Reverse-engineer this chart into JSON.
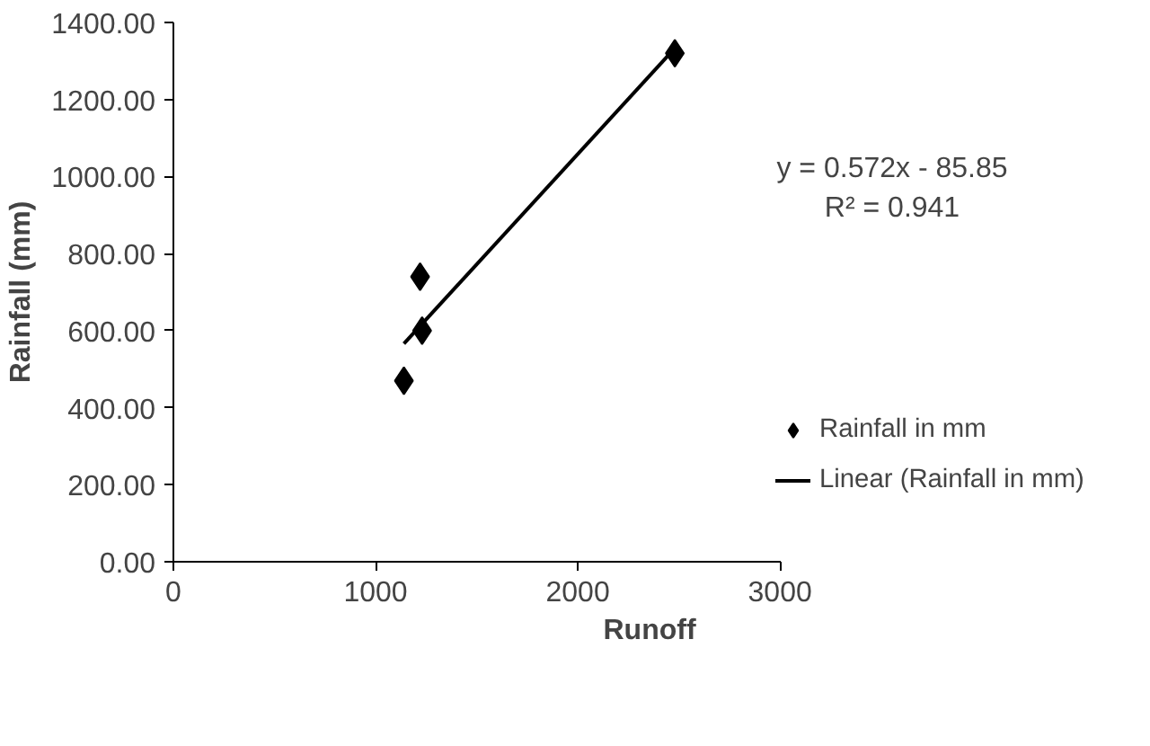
{
  "chart_data": {
    "type": "scatter",
    "xlabel": "Runoff",
    "ylabel": "Rainfall (mm)",
    "xlim": [
      0,
      3000
    ],
    "xticks": [
      0,
      1000,
      2000,
      3000
    ],
    "ylim": [
      0,
      1400
    ],
    "yticks": [
      {
        "value": 0,
        "label": "0.00"
      },
      {
        "value": 200,
        "label": "200.00"
      },
      {
        "value": 400,
        "label": "400.00"
      },
      {
        "value": 600,
        "label": "600.00"
      },
      {
        "value": 800,
        "label": "800.00"
      },
      {
        "value": 1000,
        "label": "1000.00"
      },
      {
        "value": 1200,
        "label": "1200.00"
      },
      {
        "value": 1400,
        "label": "1400.00"
      }
    ],
    "grid": false,
    "legend": "right",
    "marker": "diamond",
    "series": [
      {
        "name": "Rainfall in mm",
        "color": "#000000",
        "x": [
          1140,
          1220,
          1230,
          2480
        ],
        "values": [
          470,
          740,
          600,
          1320
        ]
      },
      {
        "name": "Linear (Rainfall in mm)",
        "type": "line",
        "marker": "none",
        "color": "#000000",
        "x": [
          1140,
          2480
        ],
        "values": [
          566,
          1333
        ]
      }
    ],
    "annotations": [
      "y = 0.572x - 85.85",
      "R² = 0.941"
    ]
  }
}
